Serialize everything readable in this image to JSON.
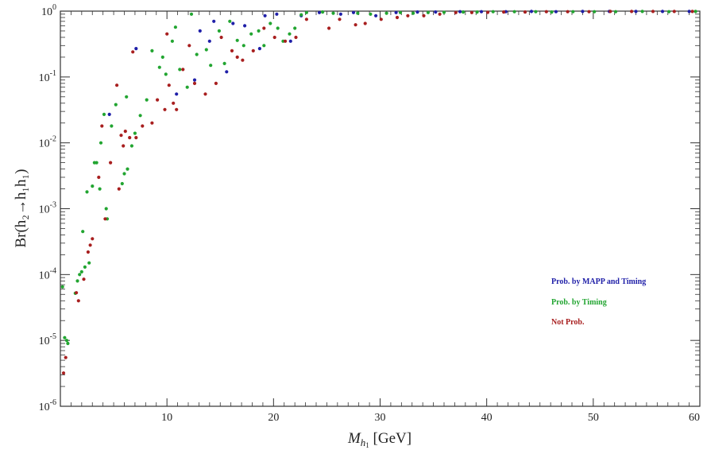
{
  "chart_data": {
    "type": "scatter",
    "xlabel_main": "M",
    "xlabel_sub": "h",
    "xlabel_subsub": "1",
    "xlabel_unit": " [GeV]",
    "ylabel": "Br(h₂→h₁h₁)",
    "xlim": [
      0,
      60
    ],
    "ylim": [
      1e-06,
      1
    ],
    "yscale": "log",
    "x_ticks": [
      "10",
      "20",
      "30",
      "40",
      "50",
      "60"
    ],
    "y_ticks": [
      {
        "base": "10",
        "exp": "-6"
      },
      {
        "base": "10",
        "exp": "-5"
      },
      {
        "base": "10",
        "exp": "-4"
      },
      {
        "base": "10",
        "exp": "-3"
      },
      {
        "base": "10",
        "exp": "-2"
      },
      {
        "base": "10",
        "exp": "-1"
      },
      {
        "base": "10",
        "exp": "0"
      }
    ],
    "legend_position": "right",
    "series": [
      {
        "name": "Prob. by MAPP and Timing",
        "color": "#1f1fa8",
        "points": [
          [
            4.6,
            0.027
          ],
          [
            7.1,
            0.27
          ],
          [
            10.9,
            0.055
          ],
          [
            12.6,
            0.09
          ],
          [
            13.1,
            0.5
          ],
          [
            14.0,
            0.35
          ],
          [
            14.4,
            0.7
          ],
          [
            15.6,
            0.12
          ],
          [
            16.2,
            0.65
          ],
          [
            17.3,
            0.6
          ],
          [
            18.7,
            0.27
          ],
          [
            19.2,
            0.85
          ],
          [
            20.3,
            0.9
          ],
          [
            21.6,
            0.35
          ],
          [
            22.6,
            0.85
          ],
          [
            24.3,
            0.95
          ],
          [
            26.3,
            0.9
          ],
          [
            27.5,
            0.95
          ],
          [
            29.6,
            0.85
          ],
          [
            31.5,
            0.95
          ],
          [
            33.5,
            0.97
          ],
          [
            35.2,
            0.97
          ],
          [
            37.5,
            0.98
          ],
          [
            39.5,
            0.98
          ],
          [
            41.8,
            0.98
          ],
          [
            44.2,
            0.99
          ],
          [
            46.5,
            0.98
          ],
          [
            49.0,
            0.99
          ],
          [
            51.5,
            0.99
          ],
          [
            54.0,
            0.99
          ],
          [
            56.5,
            0.99
          ],
          [
            59.0,
            0.99
          ]
        ]
      },
      {
        "name": "Prob. by Timing",
        "color": "#22a531",
        "points": [
          [
            0.2,
            6.5e-05
          ],
          [
            0.4,
            1.1e-05
          ],
          [
            0.6,
            1e-05
          ],
          [
            0.7,
            9e-06
          ],
          [
            1.4,
            5.2e-05
          ],
          [
            1.6,
            8e-05
          ],
          [
            1.8,
            0.0001
          ],
          [
            2.0,
            0.00011
          ],
          [
            2.1,
            0.00045
          ],
          [
            2.3,
            0.00013
          ],
          [
            2.5,
            0.0018
          ],
          [
            2.7,
            0.00015
          ],
          [
            3.0,
            0.0022
          ],
          [
            3.2,
            0.005
          ],
          [
            3.4,
            0.005
          ],
          [
            3.7,
            0.002
          ],
          [
            3.8,
            0.01
          ],
          [
            4.1,
            0.027
          ],
          [
            4.3,
            0.001
          ],
          [
            4.4,
            0.0007
          ],
          [
            4.8,
            0.018
          ],
          [
            5.2,
            0.038
          ],
          [
            5.8,
            0.0024
          ],
          [
            6.0,
            0.0034
          ],
          [
            6.2,
            0.05
          ],
          [
            6.3,
            0.004
          ],
          [
            6.7,
            0.009
          ],
          [
            7.0,
            0.014
          ],
          [
            7.5,
            0.026
          ],
          [
            8.1,
            0.045
          ],
          [
            8.6,
            0.25
          ],
          [
            9.3,
            0.14
          ],
          [
            9.6,
            0.2
          ],
          [
            9.9,
            0.11
          ],
          [
            10.5,
            0.35
          ],
          [
            10.8,
            0.57
          ],
          [
            11.2,
            0.13
          ],
          [
            11.9,
            0.07
          ],
          [
            12.3,
            0.9
          ],
          [
            12.8,
            0.22
          ],
          [
            13.7,
            0.26
          ],
          [
            14.1,
            0.15
          ],
          [
            14.9,
            0.5
          ],
          [
            15.4,
            0.16
          ],
          [
            15.9,
            0.7
          ],
          [
            16.6,
            0.36
          ],
          [
            17.2,
            0.3
          ],
          [
            17.9,
            0.45
          ],
          [
            18.6,
            0.5
          ],
          [
            19.1,
            0.3
          ],
          [
            19.7,
            0.65
          ],
          [
            20.4,
            0.55
          ],
          [
            20.9,
            0.35
          ],
          [
            21.5,
            0.45
          ],
          [
            22.0,
            0.55
          ],
          [
            22.6,
            0.88
          ],
          [
            23.1,
            0.95
          ],
          [
            24.6,
            0.97
          ],
          [
            25.6,
            0.93
          ],
          [
            27.9,
            0.93
          ],
          [
            29.1,
            0.9
          ],
          [
            30.6,
            0.93
          ],
          [
            31.9,
            0.95
          ],
          [
            33.1,
            0.93
          ],
          [
            34.5,
            0.95
          ],
          [
            36.0,
            0.96
          ],
          [
            37.8,
            0.97
          ],
          [
            39.1,
            0.97
          ],
          [
            40.6,
            0.98
          ],
          [
            42.6,
            0.98
          ],
          [
            44.6,
            0.98
          ],
          [
            46.1,
            0.97
          ],
          [
            48.1,
            0.98
          ],
          [
            50.1,
            0.98
          ],
          [
            52.1,
            0.98
          ],
          [
            54.6,
            0.99
          ],
          [
            57.1,
            0.98
          ],
          [
            59.6,
            0.99
          ]
        ]
      },
      {
        "name": "Not Prob.",
        "color": "#a81f1f",
        "points": [
          [
            0.3,
            3.2e-06
          ],
          [
            0.5,
            5.5e-06
          ],
          [
            1.5,
            5.3e-05
          ],
          [
            1.7,
            4e-05
          ],
          [
            2.2,
            8.5e-05
          ],
          [
            2.6,
            0.00022
          ],
          [
            2.8,
            0.00028
          ],
          [
            3.0,
            0.00035
          ],
          [
            3.6,
            0.003
          ],
          [
            3.9,
            0.018
          ],
          [
            4.2,
            0.0007
          ],
          [
            4.7,
            0.005
          ],
          [
            5.3,
            0.075
          ],
          [
            5.5,
            0.002
          ],
          [
            5.7,
            0.013
          ],
          [
            5.9,
            0.009
          ],
          [
            6.1,
            0.015
          ],
          [
            6.5,
            0.012
          ],
          [
            6.8,
            0.24
          ],
          [
            7.1,
            0.012
          ],
          [
            7.7,
            0.018
          ],
          [
            8.6,
            0.02
          ],
          [
            9.1,
            0.045
          ],
          [
            9.8,
            0.032
          ],
          [
            10.0,
            0.45
          ],
          [
            10.2,
            0.075
          ],
          [
            10.6,
            0.04
          ],
          [
            10.9,
            0.032
          ],
          [
            11.5,
            0.13
          ],
          [
            12.1,
            0.3
          ],
          [
            12.6,
            0.08
          ],
          [
            13.6,
            0.055
          ],
          [
            14.6,
            0.08
          ],
          [
            15.1,
            0.4
          ],
          [
            16.1,
            0.25
          ],
          [
            16.6,
            0.2
          ],
          [
            17.1,
            0.18
          ],
          [
            18.1,
            0.25
          ],
          [
            19.1,
            0.55
          ],
          [
            20.1,
            0.4
          ],
          [
            21.1,
            0.35
          ],
          [
            22.1,
            0.4
          ],
          [
            23.1,
            0.75
          ],
          [
            25.2,
            0.55
          ],
          [
            26.2,
            0.75
          ],
          [
            27.7,
            0.62
          ],
          [
            28.6,
            0.65
          ],
          [
            30.1,
            0.75
          ],
          [
            31.6,
            0.8
          ],
          [
            32.6,
            0.85
          ],
          [
            34.1,
            0.85
          ],
          [
            35.6,
            0.9
          ],
          [
            37.1,
            0.95
          ],
          [
            38.6,
            0.95
          ],
          [
            40.1,
            0.96
          ],
          [
            41.6,
            0.97
          ],
          [
            43.6,
            0.97
          ],
          [
            45.6,
            0.98
          ],
          [
            47.6,
            0.98
          ],
          [
            49.6,
            0.98
          ],
          [
            51.6,
            0.99
          ],
          [
            53.6,
            0.99
          ],
          [
            55.6,
            0.99
          ],
          [
            57.6,
            0.99
          ],
          [
            59.3,
            0.99
          ]
        ]
      }
    ]
  }
}
